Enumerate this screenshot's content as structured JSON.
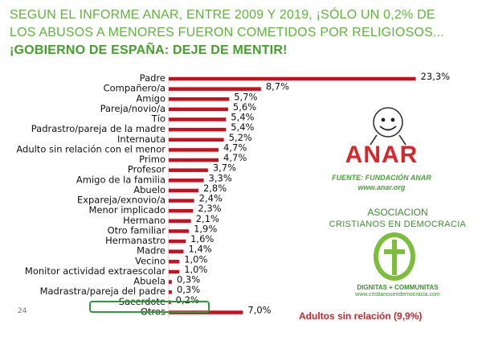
{
  "headline": {
    "line1": "SEGUN EL INFORME ANAR, ENTRE 2009 Y 2019, ¡SÓLO UN 0,2% DE",
    "line2": "LOS ABUSOS A MENORES FUERON COMETIDOS POR RELIGIOSOS...",
    "line3": "¡GOBIERNO DE ESPAÑA: DEJE DE MENTIR!"
  },
  "colors": {
    "bar": "#c8111e",
    "headline": "#5fb33c",
    "highlight": "#2e9a3c",
    "anar_red": "#d9262b"
  },
  "chart_data": {
    "type": "bar",
    "orientation": "horizontal",
    "title": "",
    "xlabel": "",
    "ylabel": "",
    "xlim": [
      0,
      25
    ],
    "categories": [
      "Padre",
      "Compañero/a",
      "Amigo",
      "Pareja/novio/a",
      "Tío",
      "Padrastro/pareja de la madre",
      "Internauta",
      "Adulto sin relación con el menor",
      "Primo",
      "Profesor",
      "Amigo de la familia",
      "Abuelo",
      "Expareja/exnovio/a",
      "Menor implicado",
      "Hermano",
      "Otro familiar",
      "Hermanastro",
      "Madre",
      "Vecino",
      "Monitor actividad extraescolar",
      "Abuela",
      "Madrastra/pareja del padre",
      "Sacerdote",
      "Otros"
    ],
    "values": [
      23.3,
      8.7,
      5.7,
      5.6,
      5.4,
      5.4,
      5.2,
      4.7,
      4.7,
      3.7,
      3.3,
      2.8,
      2.4,
      2.3,
      2.1,
      1.9,
      1.6,
      1.4,
      1.0,
      1.0,
      0.3,
      0.3,
      0.2,
      7.0
    ],
    "value_labels": [
      "23,3%",
      "8,7%",
      "5,7%",
      "5,6%",
      "5,4%",
      "5,4%",
      "5,2%",
      "4,7%",
      "4,7%",
      "3,7%",
      "3,3%",
      "2,8%",
      "2,4%",
      "2,3%",
      "2,1%",
      "1,9%",
      "1,6%",
      "1,4%",
      "1,0%",
      "1,0%",
      "0,3%",
      "0,3%",
      "0,2%",
      "7,0%"
    ],
    "highlighted_category": "Sacerdote"
  },
  "page_number": "24",
  "anar": {
    "logo_text": "ANAR",
    "source": "FUENTE: FUNDACIÓN ANAR",
    "url": "www.anar.org"
  },
  "acd": {
    "line1": "ASOCIACION",
    "line2": "CRISTIANOS EN DEMOCRACIA",
    "motto": "DIGNITAS + COMMUNITAS",
    "url": "www.cristianosendemocracia.com"
  },
  "note": "Adultos sin relación (9,9%)"
}
